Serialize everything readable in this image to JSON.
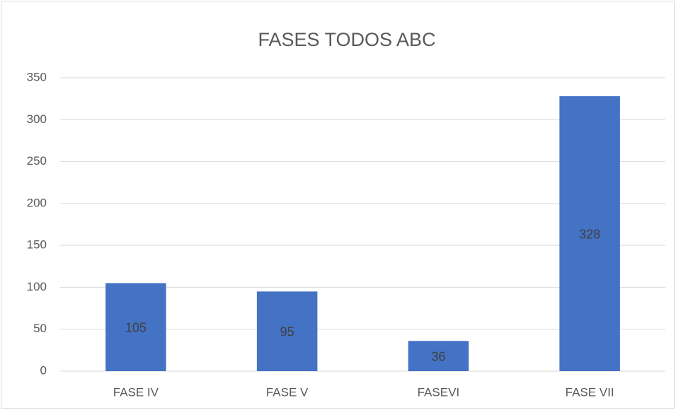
{
  "chart_data": {
    "type": "bar",
    "title": "FASES TODOS ABC",
    "categories": [
      "FASE IV",
      "FASE V",
      "FASEVI",
      "FASE VII"
    ],
    "values": [
      105,
      95,
      36,
      328
    ],
    "color": "#4472c4",
    "ylim": [
      0,
      350
    ],
    "yticks": [
      0,
      50,
      100,
      150,
      200,
      250,
      300,
      350
    ],
    "grid": true
  }
}
